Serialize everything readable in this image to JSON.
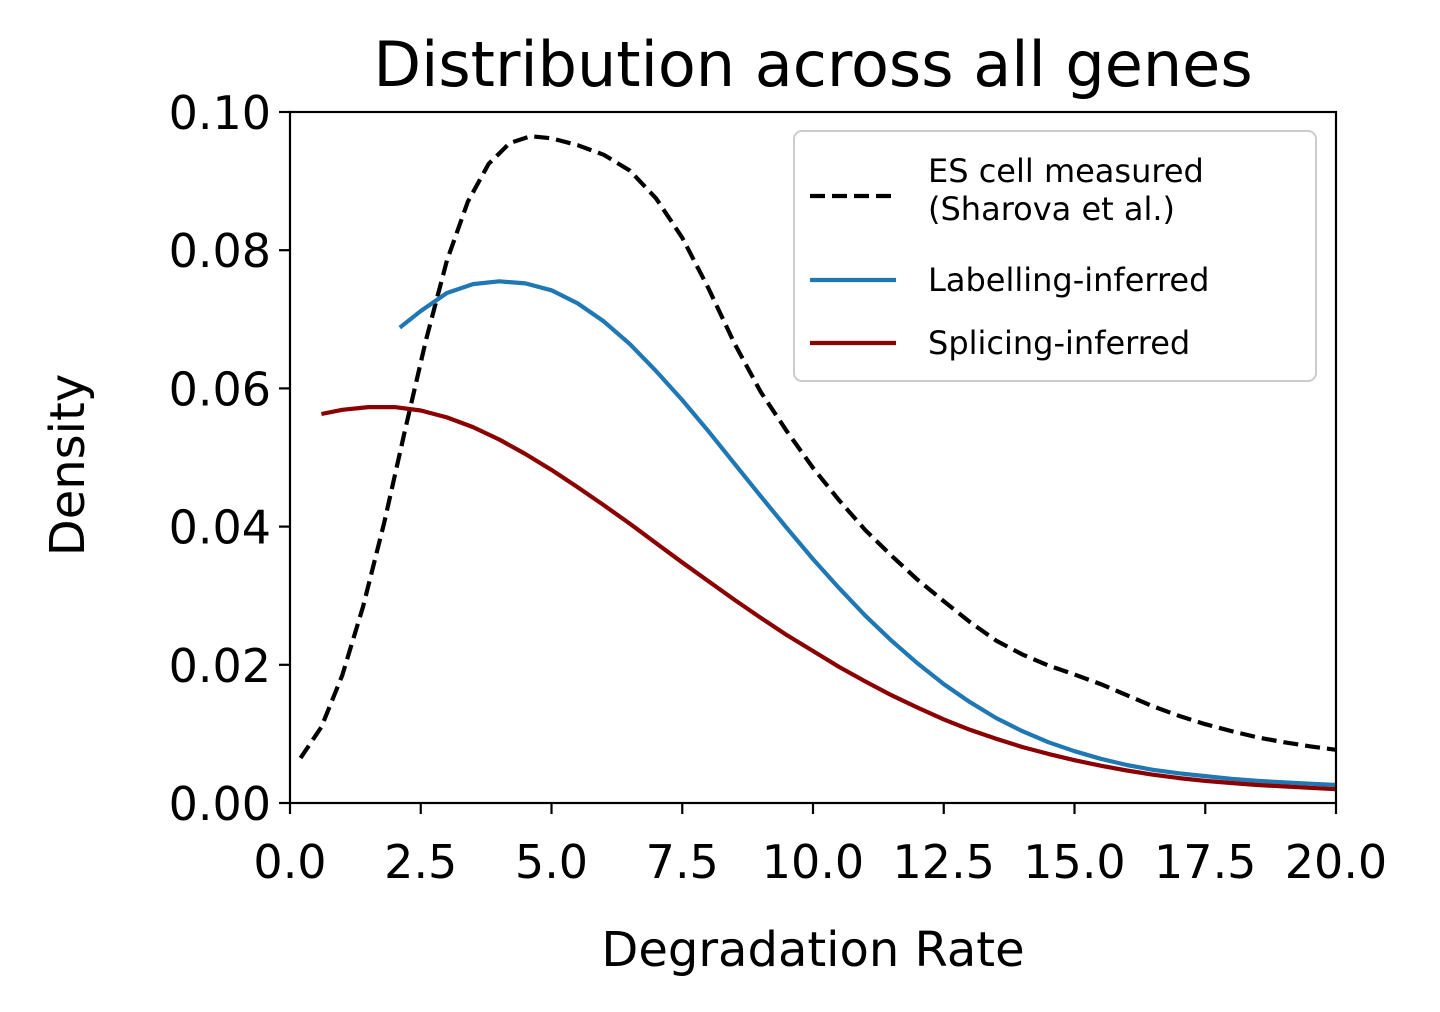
{
  "chart_data": {
    "type": "line",
    "title": "Distribution across all genes",
    "xlabel": "Degradation Rate",
    "ylabel": "Density",
    "xlim": [
      0,
      20
    ],
    "ylim": [
      0,
      0.1
    ],
    "xticks": [
      "0.0",
      "2.5",
      "5.0",
      "7.5",
      "10.0",
      "12.5",
      "15.0",
      "17.5",
      "20.0"
    ],
    "yticks": [
      "0.00",
      "0.02",
      "0.04",
      "0.06",
      "0.08",
      "0.10"
    ],
    "grid": false,
    "legend_position": "top-right",
    "series": [
      {
        "name": "ES cell measured\n(Sharova et al.)",
        "color": "#000000",
        "style": "dashed",
        "x": [
          0.2,
          0.6,
          1.0,
          1.4,
          1.8,
          2.2,
          2.6,
          3.0,
          3.4,
          3.8,
          4.2,
          4.6,
          5.0,
          5.5,
          6.0,
          6.5,
          7.0,
          7.5,
          8.0,
          8.5,
          9.0,
          9.5,
          10.0,
          10.5,
          11.0,
          11.5,
          12.0,
          12.5,
          13.0,
          13.5,
          14.0,
          14.5,
          15.0,
          15.5,
          16.0,
          16.5,
          17.0,
          17.5,
          18.0,
          18.5,
          19.0,
          19.5,
          20.0
        ],
        "y": [
          0.0065,
          0.011,
          0.0185,
          0.0285,
          0.0405,
          0.054,
          0.067,
          0.0785,
          0.087,
          0.0925,
          0.0955,
          0.0965,
          0.0962,
          0.0952,
          0.0938,
          0.0915,
          0.0875,
          0.0818,
          0.0745,
          0.0665,
          0.0595,
          0.0538,
          0.0485,
          0.0438,
          0.0395,
          0.0358,
          0.0323,
          0.0292,
          0.0262,
          0.0235,
          0.0215,
          0.0199,
          0.0186,
          0.0172,
          0.0156,
          0.014,
          0.0126,
          0.0114,
          0.0104,
          0.0095,
          0.0088,
          0.0082,
          0.0077
        ]
      },
      {
        "name": "Labelling-inferred",
        "color": "#1f77b4",
        "style": "solid",
        "x": [
          2.1,
          2.5,
          3.0,
          3.5,
          4.0,
          4.5,
          5.0,
          5.5,
          6.0,
          6.5,
          7.0,
          7.5,
          8.0,
          8.5,
          9.0,
          9.5,
          10.0,
          10.5,
          11.0,
          11.5,
          12.0,
          12.5,
          13.0,
          13.5,
          14.0,
          14.5,
          15.0,
          15.5,
          16.0,
          16.5,
          17.0,
          17.5,
          18.0,
          18.5,
          19.0,
          19.5,
          20.0
        ],
        "y": [
          0.0688,
          0.0712,
          0.0738,
          0.0751,
          0.0755,
          0.0752,
          0.0742,
          0.0723,
          0.0697,
          0.0664,
          0.0625,
          0.0583,
          0.0538,
          0.0491,
          0.0444,
          0.0398,
          0.0353,
          0.0311,
          0.0271,
          0.0235,
          0.0202,
          0.0172,
          0.0146,
          0.0123,
          0.0104,
          0.0088,
          0.0075,
          0.0064,
          0.0055,
          0.0048,
          0.0043,
          0.0039,
          0.0035,
          0.0032,
          0.003,
          0.0028,
          0.0026
        ]
      },
      {
        "name": "Splicing-inferred",
        "color": "#8b0000",
        "style": "solid",
        "x": [
          0.6,
          1.0,
          1.5,
          2.0,
          2.5,
          3.0,
          3.5,
          4.0,
          4.5,
          5.0,
          5.5,
          6.0,
          6.5,
          7.0,
          7.5,
          8.0,
          8.5,
          9.0,
          9.5,
          10.0,
          10.5,
          11.0,
          11.5,
          12.0,
          12.5,
          13.0,
          13.5,
          14.0,
          14.5,
          15.0,
          15.5,
          16.0,
          16.5,
          17.0,
          17.5,
          18.0,
          18.5,
          19.0,
          19.5,
          20.0
        ],
        "y": [
          0.0563,
          0.0569,
          0.0573,
          0.0573,
          0.0568,
          0.0558,
          0.0544,
          0.0526,
          0.0505,
          0.0482,
          0.0457,
          0.0431,
          0.0404,
          0.0376,
          0.0348,
          0.0321,
          0.0294,
          0.0268,
          0.0243,
          0.022,
          0.0197,
          0.0176,
          0.0156,
          0.0138,
          0.0121,
          0.0106,
          0.0093,
          0.0081,
          0.0071,
          0.0062,
          0.0054,
          0.0047,
          0.0041,
          0.0036,
          0.0032,
          0.0029,
          0.0026,
          0.0024,
          0.0022,
          0.002
        ]
      }
    ]
  }
}
